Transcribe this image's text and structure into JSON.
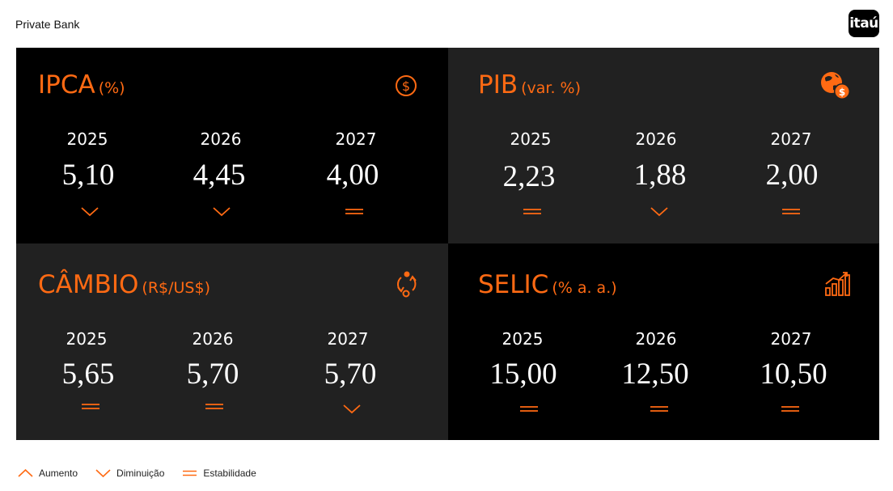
{
  "header": {
    "brand": "Private Bank",
    "logo_text": "itaú"
  },
  "colors": {
    "accent": "#ff6a13",
    "panel_dark": "#000000",
    "panel_gray": "#212121"
  },
  "panels": [
    {
      "title": "IPCA",
      "unit": "(%)",
      "icon": "dollar-coin-icon",
      "years": [
        "2025",
        "2026",
        "2027"
      ],
      "values": [
        "5,10",
        "4,45",
        "4,00"
      ],
      "trends": [
        "down",
        "down",
        "stable"
      ]
    },
    {
      "title": "PIB",
      "unit": "(var. %)",
      "icon": "globe-dollar-icon",
      "years": [
        "2025",
        "2026",
        "2027"
      ],
      "values": [
        "2,23",
        "1,88",
        "2,00"
      ],
      "trends": [
        "stable",
        "down",
        "stable"
      ]
    },
    {
      "title": "CÂMBIO",
      "unit": "(R$/US$)",
      "icon": "exchange-cycle-icon",
      "years": [
        "2025",
        "2026",
        "2027"
      ],
      "values": [
        "5,65",
        "5,70",
        "5,70"
      ],
      "trends": [
        "stable",
        "stable",
        "down"
      ]
    },
    {
      "title": "SELIC",
      "unit": "(% a. a.)",
      "icon": "growth-chart-icon",
      "years": [
        "2025",
        "2026",
        "2027"
      ],
      "values": [
        "15,00",
        "12,50",
        "10,50"
      ],
      "trends": [
        "stable",
        "stable",
        "stable"
      ]
    }
  ],
  "legend": {
    "up": "Aumento",
    "down": "Diminuição",
    "stable": "Estabilidade"
  }
}
